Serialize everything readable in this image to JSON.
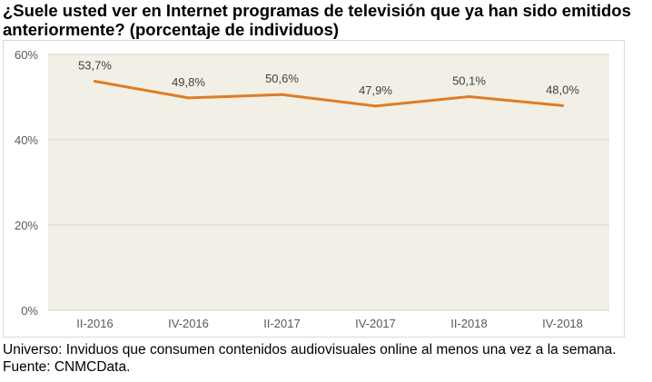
{
  "title": "¿Suele usted ver en Internet programas de televisión que ya han sido emitidos anteriormente? (porcentaje de individuos)",
  "footer": {
    "universe": "Universo: Inviduos que consumen contenidos audiovisuales online al menos una vez a la semana.",
    "source": "Fuente: CNMCData."
  },
  "colors": {
    "line": "#E07B24",
    "plot_background": "#F2F0E6",
    "gridline": "#D9D5C3",
    "text": "#404040",
    "axis_text": "#595959"
  },
  "chart_data": {
    "type": "line",
    "categories": [
      "II-2016",
      "IV-2016",
      "II-2017",
      "IV-2017",
      "II-2018",
      "IV-2018"
    ],
    "series": [
      {
        "values": [
          53.7,
          49.8,
          50.6,
          47.9,
          50.1,
          48.0
        ],
        "labels": [
          "53,7%",
          "49,8%",
          "50,6%",
          "47,9%",
          "50,1%",
          "48,0%"
        ]
      }
    ],
    "ylim": [
      0,
      60
    ],
    "yticks": [
      0,
      20,
      40,
      60
    ],
    "ytick_labels": [
      "0%",
      "20%",
      "40%",
      "60%"
    ],
    "grid": true,
    "legend": "none",
    "title": "",
    "xlabel": "",
    "ylabel": ""
  }
}
